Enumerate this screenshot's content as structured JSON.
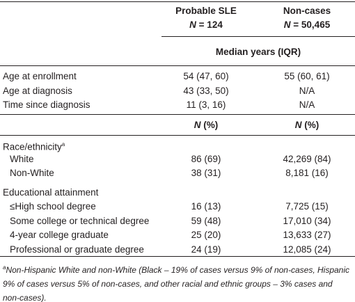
{
  "table": {
    "columns": [
      {
        "title": "Probable SLE",
        "n_symbol": "N",
        "n_rest": "= 124"
      },
      {
        "title": "Non-cases",
        "n_symbol": "N",
        "n_rest": "= 50,465"
      }
    ],
    "median_header": "Median years (IQR)",
    "median_rows": [
      [
        "Age at enrollment",
        "54 (47, 60)",
        "55 (60, 61)"
      ],
      [
        "Age at diagnosis",
        "43 (33, 50)",
        "N/A"
      ],
      [
        "Time since diagnosis",
        "11 (3, 16)",
        "N/A"
      ]
    ],
    "count_header": [
      {
        "symbol": "N",
        "rest": "(%)"
      },
      {
        "symbol": "N",
        "rest": "(%)"
      }
    ],
    "groups": [
      {
        "label": "Race/ethnicity",
        "note_mark": "a",
        "rows": [
          [
            "White",
            "86 (69)",
            "42,269 (84)"
          ],
          [
            "Non-White",
            "38 (31)",
            "8,181 (16)"
          ]
        ]
      },
      {
        "label": "Educational attainment",
        "rows": [
          [
            "≤High school degree",
            "16 (13)",
            "7,725 (15)"
          ],
          [
            "Some college or technical degree",
            "59 (48)",
            "17,010 (34)"
          ],
          [
            "4-year college graduate",
            "25 (20)",
            "13,633 (27)"
          ],
          [
            "Professional or graduate degree",
            "24 (19)",
            "12,085 (24)"
          ]
        ]
      }
    ],
    "footnote": {
      "mark": "a",
      "text": "Non-Hispanic White and non-White (Black – 19% of cases versus 9% of non-cases, Hispanic 9% of cases versus 5% of non-cases, and other racial and ethnic groups – 3% cases and non-cases)."
    }
  }
}
